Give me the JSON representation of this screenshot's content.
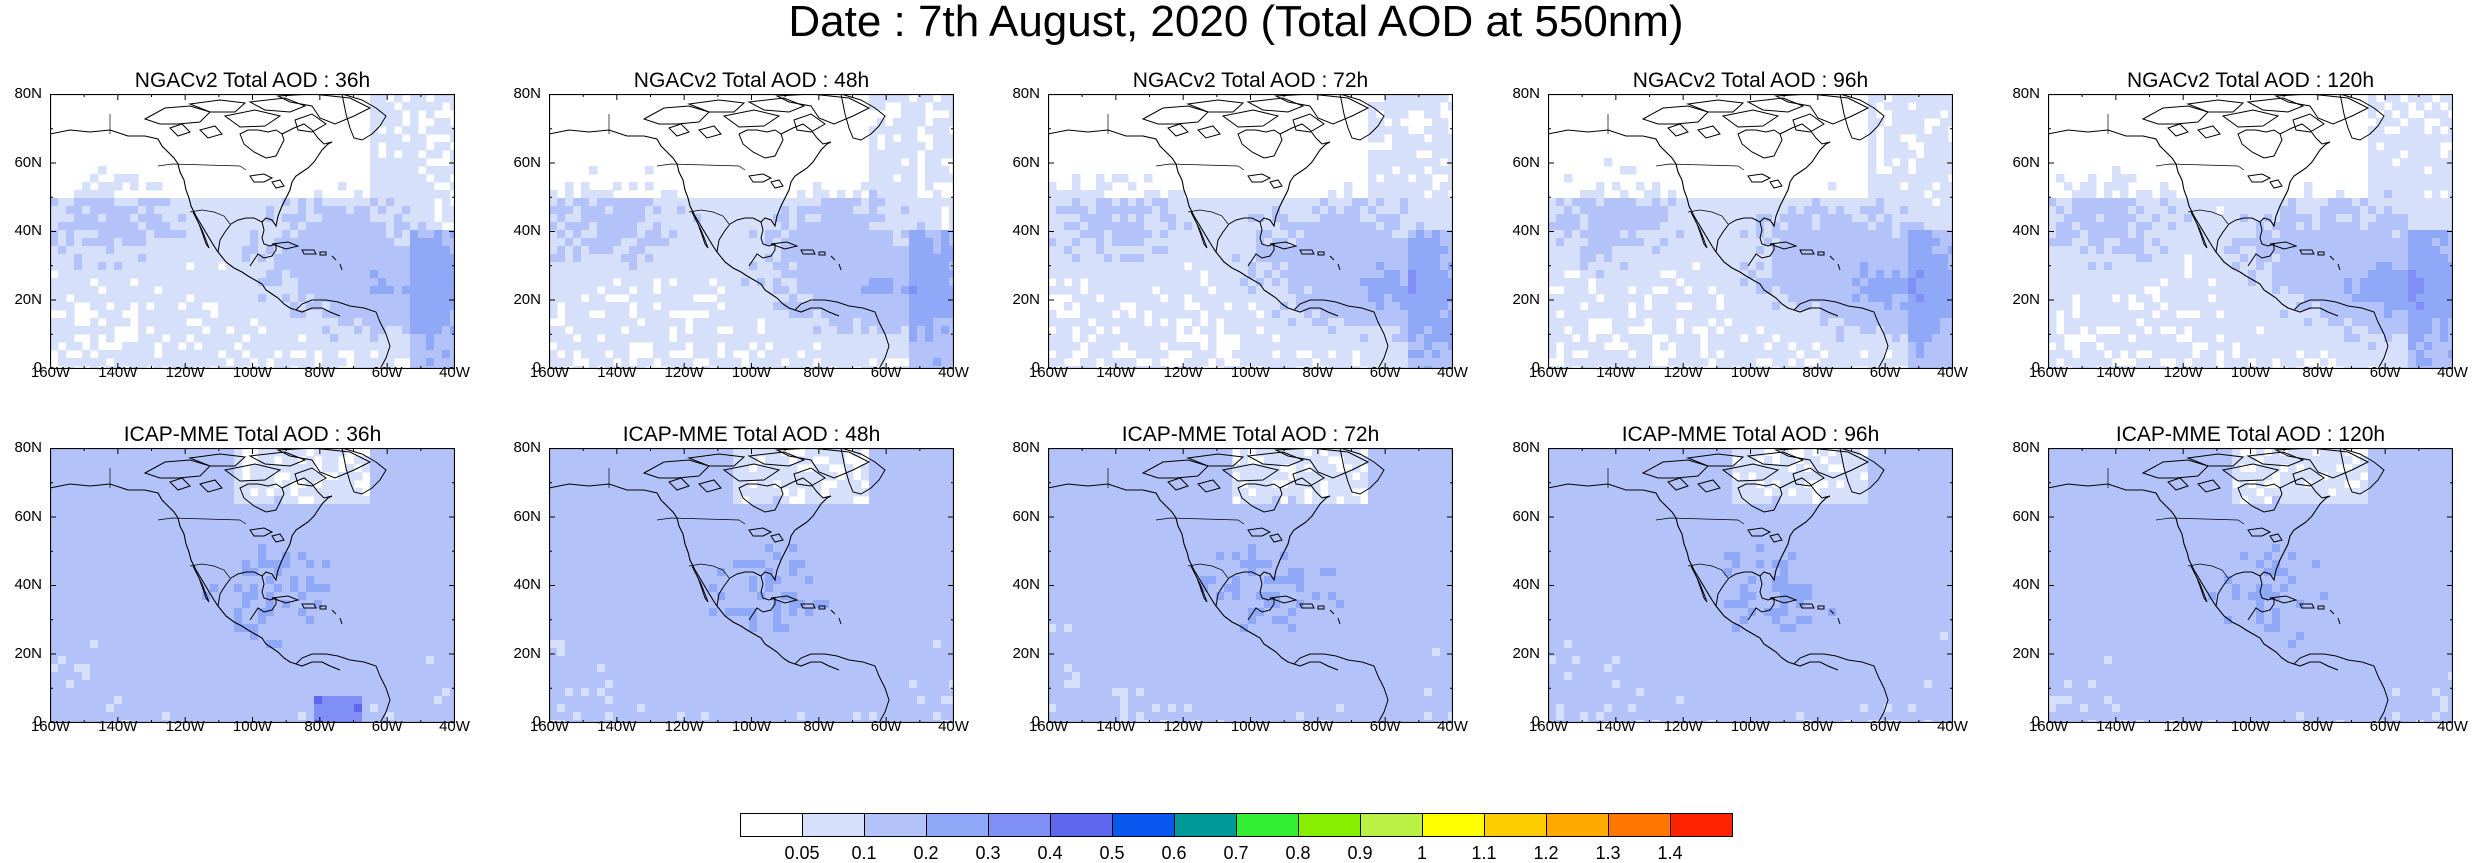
{
  "title": "Date : 7th August, 2020 (Total AOD at 550nm)",
  "rows": [
    {
      "model": "NGACv2",
      "panels": [
        {
          "title": "NGACv2 Total AOD : 36h",
          "lead": 36
        },
        {
          "title": "NGACv2 Total AOD : 48h",
          "lead": 48
        },
        {
          "title": "NGACv2 Total AOD : 72h",
          "lead": 72
        },
        {
          "title": "NGACv2 Total AOD : 96h",
          "lead": 96
        },
        {
          "title": "NGACv2 Total AOD : 120h",
          "lead": 120
        }
      ]
    },
    {
      "model": "ICAP-MME",
      "panels": [
        {
          "title": "ICAP-MME Total AOD : 36h",
          "lead": 36
        },
        {
          "title": "ICAP-MME Total AOD : 48h",
          "lead": 48
        },
        {
          "title": "ICAP-MME Total AOD : 72h",
          "lead": 72
        },
        {
          "title": "ICAP-MME Total AOD : 96h",
          "lead": 96
        },
        {
          "title": "ICAP-MME Total AOD : 120h",
          "lead": 120
        }
      ]
    }
  ],
  "axes": {
    "lat_labels": [
      "80N",
      "60N",
      "40N",
      "20N",
      "0"
    ],
    "lon_labels": [
      "160W",
      "140W",
      "120W",
      "100W",
      "80W",
      "60W",
      "40W"
    ],
    "lat_range": [
      0,
      80
    ],
    "lon_range": [
      -160,
      -40
    ]
  },
  "colorbar": {
    "labels": [
      "0.05",
      "0.1",
      "0.2",
      "0.3",
      "0.4",
      "0.5",
      "0.6",
      "0.7",
      "0.8",
      "0.9",
      "1",
      "1.1",
      "1.2",
      "1.3",
      "1.4"
    ],
    "colors": [
      "#ffffff",
      "#d6e0fb",
      "#b3c3fa",
      "#8fa8f8",
      "#7f8ff5",
      "#5f67ef",
      "#0a57f0",
      "#009999",
      "#33ee33",
      "#88ee00",
      "#bbf044",
      "#ffff00",
      "#ffcc00",
      "#ffaa00",
      "#ff7700",
      "#ff2200"
    ]
  }
}
